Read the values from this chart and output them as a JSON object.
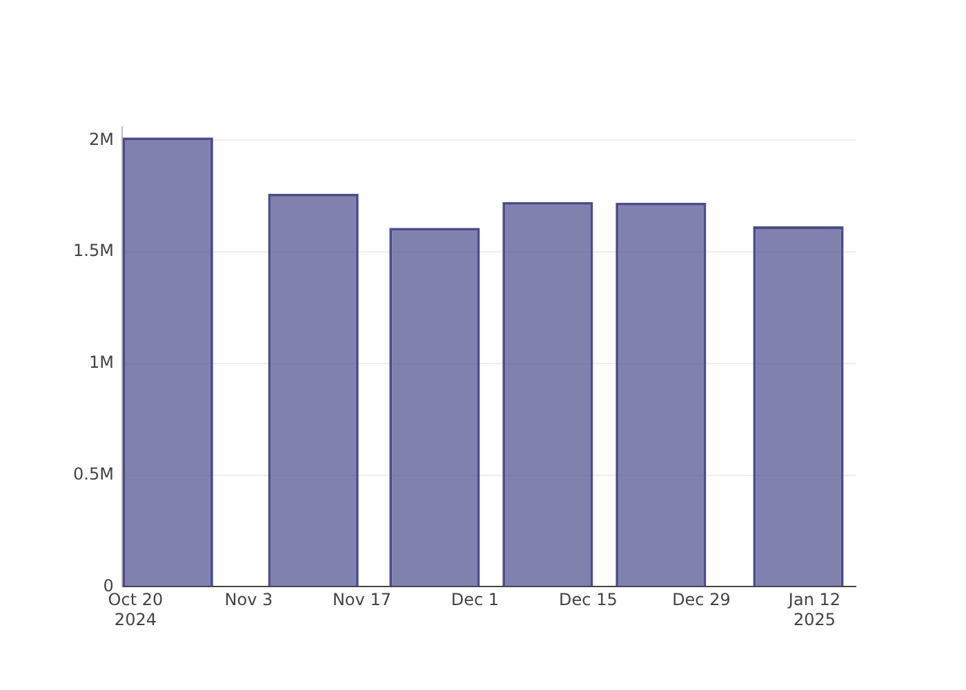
{
  "chart_data": {
    "type": "bar",
    "x": [
      "2024-10-24",
      "2024-11-11",
      "2024-11-26",
      "2024-12-10",
      "2024-12-24",
      "2025-01-10"
    ],
    "values": [
      2013000,
      1761000,
      1608000,
      1724000,
      1721000,
      1615000
    ],
    "color": "#4c4c8d",
    "xlim": [
      "2024-10-18T08:00",
      "2025-01-17T02:00"
    ],
    "xticks": [
      {
        "value": "2024-10-20",
        "label": "Oct 20\n2024"
      },
      {
        "value": "2024-11-03",
        "label": "Nov 3"
      },
      {
        "value": "2024-11-17",
        "label": "Nov 17"
      },
      {
        "value": "2024-12-01",
        "label": "Dec 1"
      },
      {
        "value": "2024-12-15",
        "label": "Dec 15"
      },
      {
        "value": "2024-12-29",
        "label": "Dec 29"
      },
      {
        "value": "2025-01-12",
        "label": "Jan 12\n2025"
      }
    ],
    "ylim": [
      0,
      2060000
    ],
    "yticks": [
      {
        "value": 0,
        "label": "0"
      },
      {
        "value": 500000,
        "label": "0.5M"
      },
      {
        "value": 1000000,
        "label": "1M"
      },
      {
        "value": 1500000,
        "label": "1.5M"
      },
      {
        "value": 2000000,
        "label": "2M"
      }
    ],
    "grid": "y",
    "legend": false
  }
}
